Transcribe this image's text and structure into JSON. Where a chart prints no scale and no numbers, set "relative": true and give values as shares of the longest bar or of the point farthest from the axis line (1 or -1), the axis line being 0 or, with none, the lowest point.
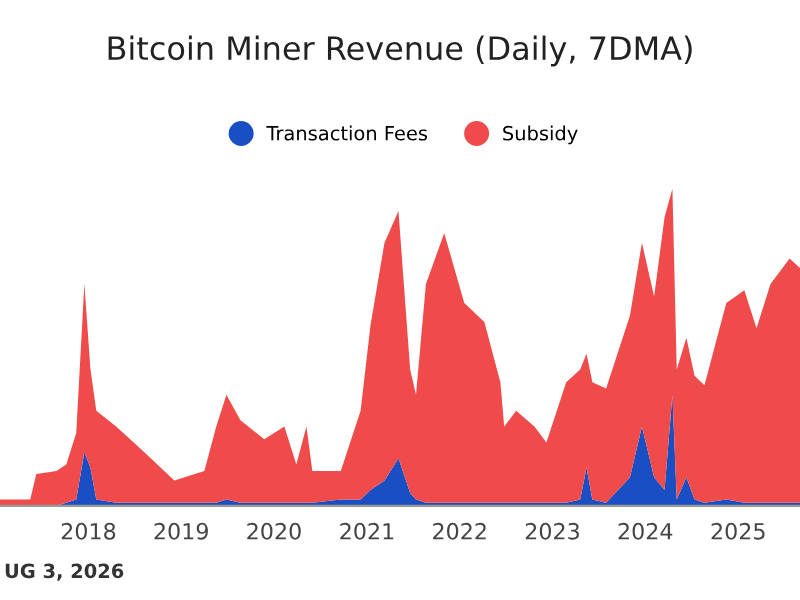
{
  "chart_data": {
    "type": "area",
    "title": "Bitcoin Miner Revenue (Daily, 7DMA)",
    "relative": true,
    "stacked": true,
    "legend": "top",
    "x": [
      "2017-01-18",
      "2017-05-17",
      "2017-06-10",
      "2017-08-28",
      "2017-10-06",
      "2017-11-14",
      "2017-12-16",
      "2018-01-09",
      "2018-02-01",
      "2018-04-20",
      "2018-08-08",
      "2018-12-05",
      "2019-04-02",
      "2019-05-19",
      "2019-06-28",
      "2019-08-22",
      "2019-11-24",
      "2020-02-11",
      "2020-03-29",
      "2020-05-08",
      "2020-05-31",
      "2020-09-20",
      "2020-12-07",
      "2021-01-15",
      "2021-03-11",
      "2021-05-05",
      "2021-06-20",
      "2021-07-13",
      "2021-08-21",
      "2021-11-01",
      "2022-01-19",
      "2022-04-08",
      "2022-06-10",
      "2022-06-25",
      "2022-08-11",
      "2022-10-22",
      "2022-12-08",
      "2023-02-24",
      "2023-04-20",
      "2023-05-15",
      "2023-06-07",
      "2023-07-31",
      "2023-11-02",
      "2023-12-19",
      "2024-02-05",
      "2024-03-17",
      "2024-04-17",
      "2024-05-04",
      "2024-06-11",
      "2024-07-13",
      "2024-08-21",
      "2024-11-15",
      "2025-01-25",
      "2025-03-14",
      "2025-05-08",
      "2025-07-22",
      "2025-09-01"
    ],
    "xlim": [
      "2017-01-18",
      "2025-09-01"
    ],
    "xticks": [
      {
        "value": "2018",
        "label": "2018"
      },
      {
        "value": "2019",
        "label": "2019"
      },
      {
        "value": "2020",
        "label": "2020"
      },
      {
        "value": "2021",
        "label": "2021"
      },
      {
        "value": "2022",
        "label": "2022"
      },
      {
        "value": "2023",
        "label": "2023"
      },
      {
        "value": "2024",
        "label": "2024"
      },
      {
        "value": "2025",
        "label": "2025"
      }
    ],
    "series": [
      {
        "name": "Transaction Fees",
        "color": "#1a4fc4",
        "values": [
          0,
          0,
          0,
          0,
          0.01,
          0.02,
          0.17,
          0.12,
          0.02,
          0.01,
          0.01,
          0.01,
          0.01,
          0.01,
          0.02,
          0.01,
          0.01,
          0.01,
          0.01,
          0.01,
          0.01,
          0.02,
          0.02,
          0.05,
          0.08,
          0.15,
          0.04,
          0.02,
          0.01,
          0.01,
          0.01,
          0.01,
          0.01,
          0.01,
          0.01,
          0.01,
          0.01,
          0.01,
          0.02,
          0.12,
          0.02,
          0.01,
          0.09,
          0.25,
          0.09,
          0.05,
          0.35,
          0.02,
          0.09,
          0.02,
          0.01,
          0.02,
          0.01,
          0.01,
          0.01,
          0.01,
          0.01
        ]
      },
      {
        "name": "Subsidy",
        "color": "#ef4b4b",
        "values": [
          0.02,
          0.02,
          0.1,
          0.11,
          0.12,
          0.21,
          0.53,
          0.31,
          0.28,
          0.24,
          0.16,
          0.07,
          0.1,
          0.24,
          0.33,
          0.26,
          0.2,
          0.24,
          0.12,
          0.24,
          0.1,
          0.09,
          0.28,
          0.52,
          0.75,
          0.78,
          0.39,
          0.33,
          0.69,
          0.85,
          0.63,
          0.57,
          0.38,
          0.24,
          0.29,
          0.24,
          0.19,
          0.38,
          0.41,
          0.36,
          0.37,
          0.36,
          0.51,
          0.58,
          0.57,
          0.86,
          0.65,
          0.41,
          0.44,
          0.39,
          0.37,
          0.62,
          0.67,
          0.55,
          0.69,
          0.77,
          0.74
        ]
      }
    ],
    "annotations": [
      "UG 3, 2026"
    ]
  }
}
